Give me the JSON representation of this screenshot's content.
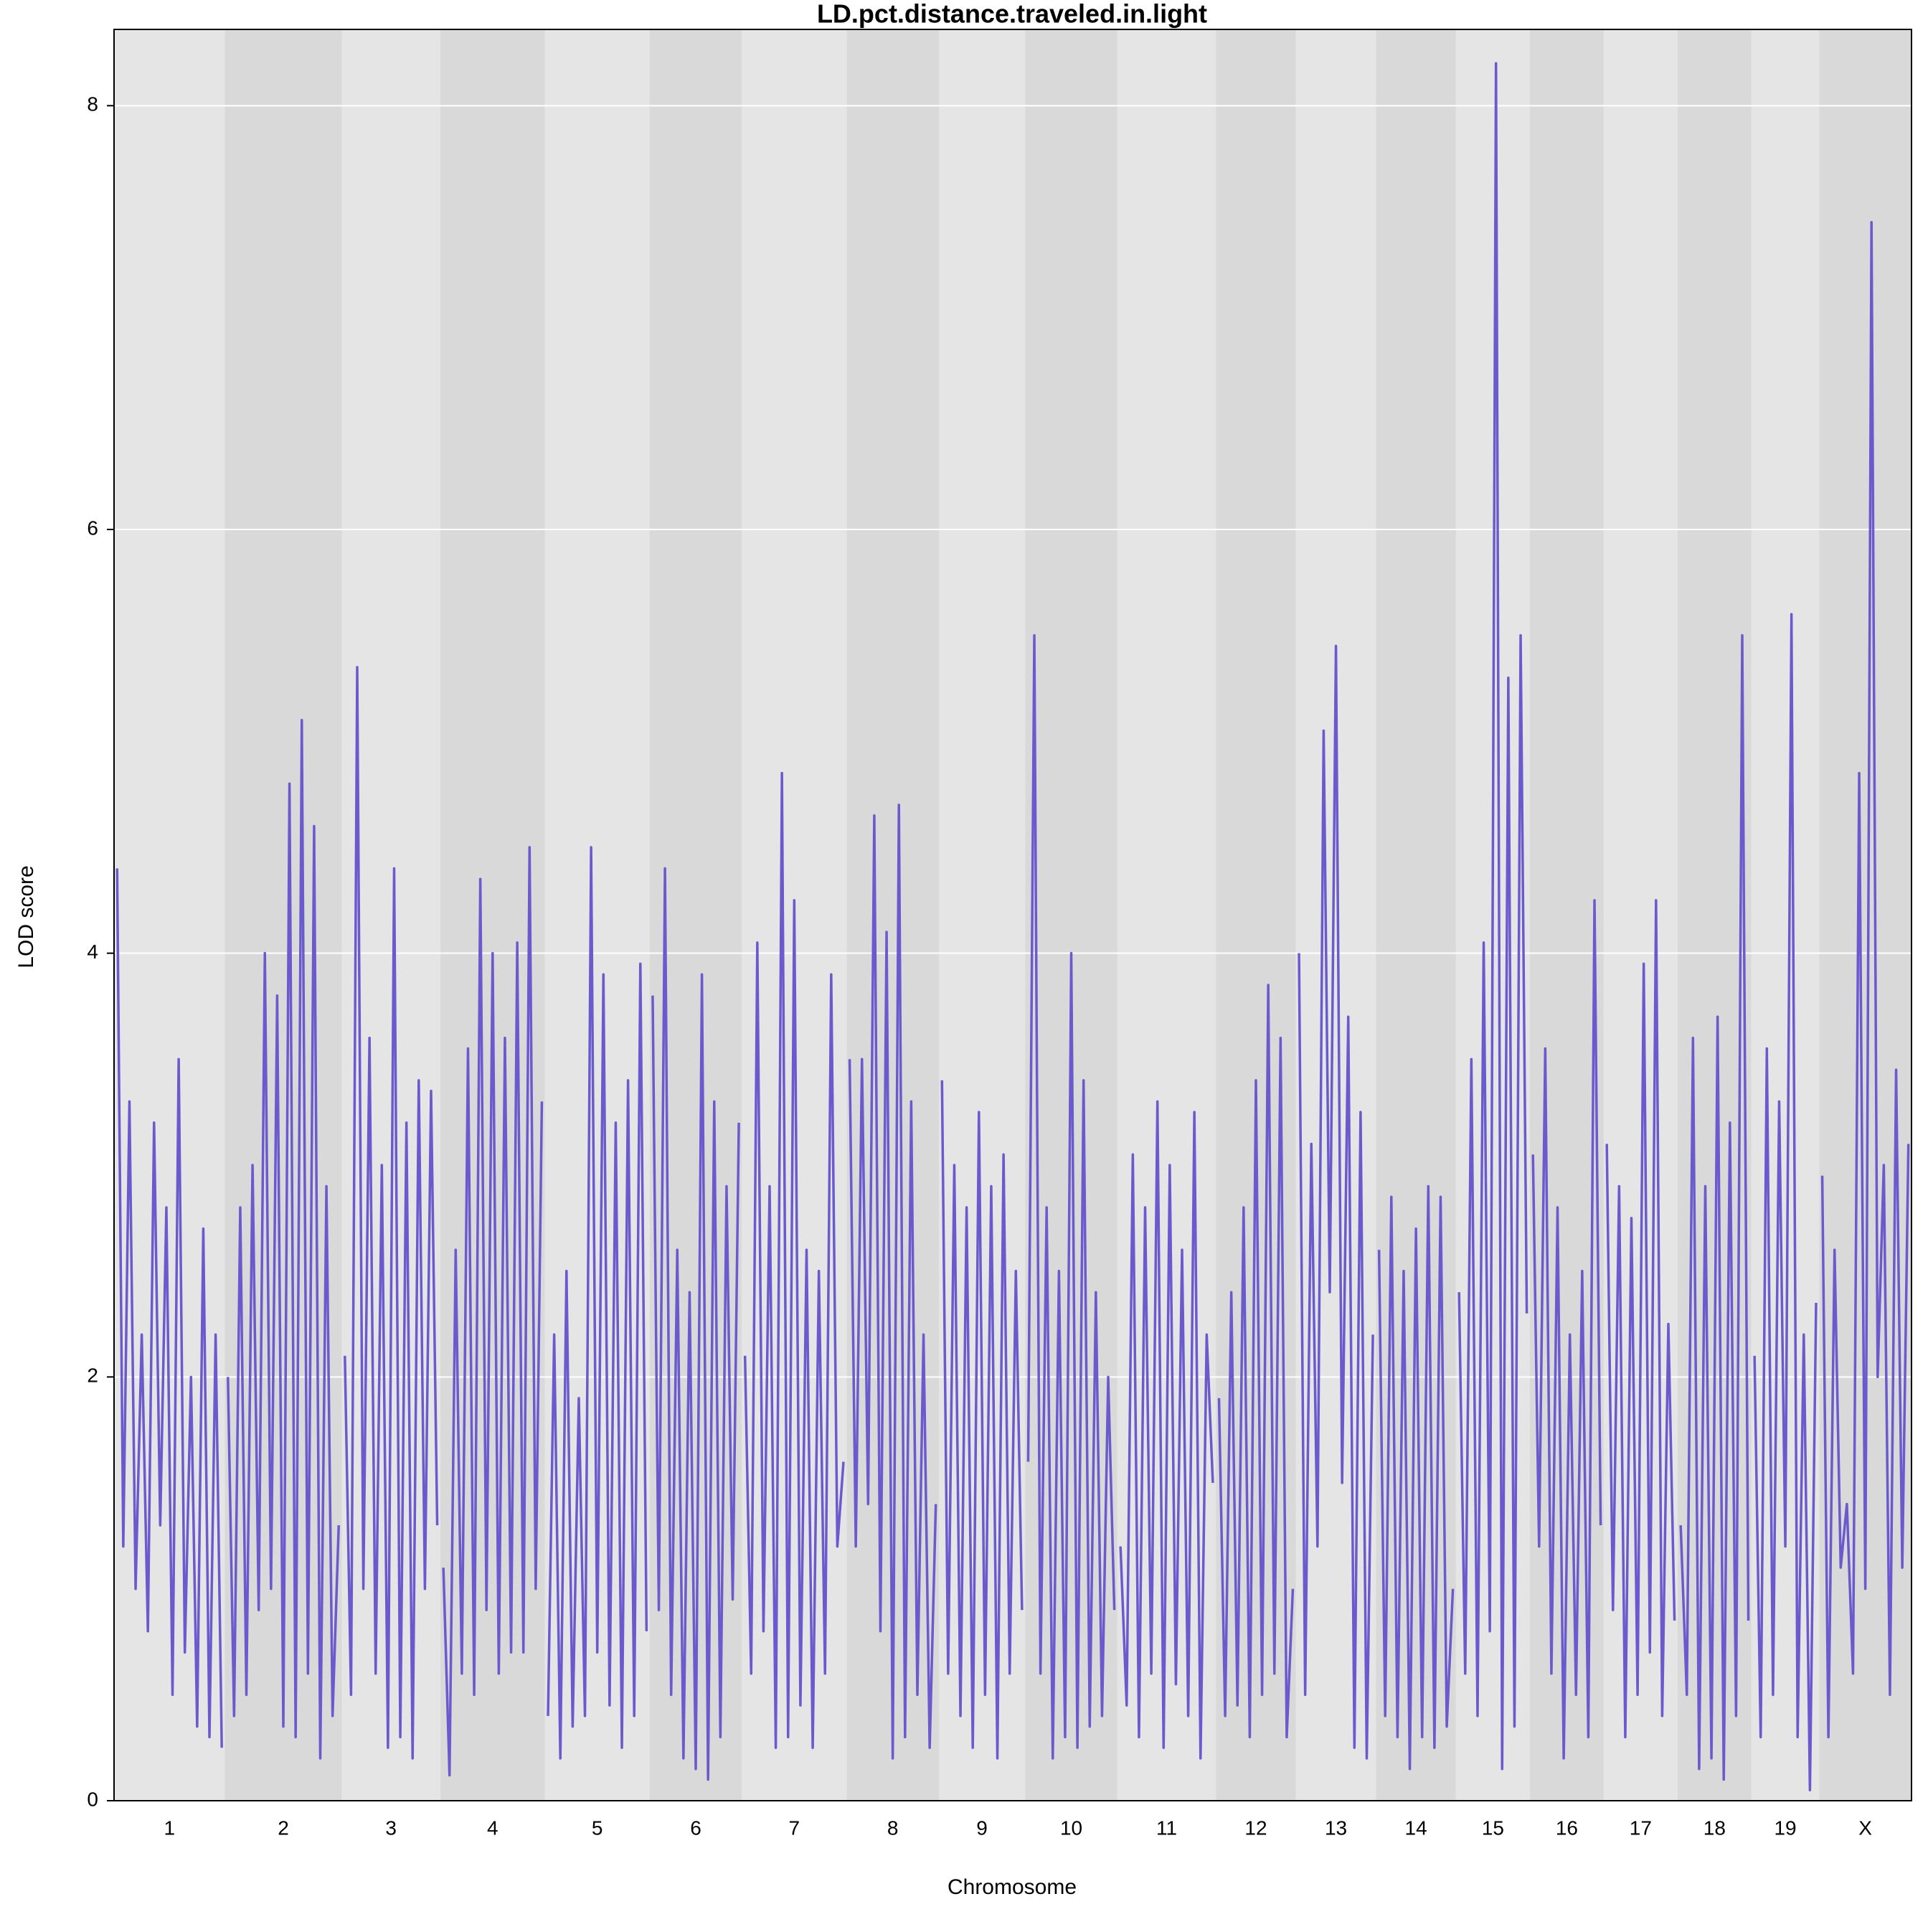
{
  "chart_data": {
    "type": "line",
    "title": "LD.pct.distance.traveled.in.light",
    "x_label": "Chromosome",
    "y_label": "LOD score",
    "categories": [
      "1",
      "2",
      "3",
      "4",
      "5",
      "6",
      "7",
      "8",
      "9",
      "10",
      "11",
      "12",
      "13",
      "14",
      "15",
      "16",
      "17",
      "18",
      "19",
      "X"
    ],
    "series": [
      {
        "color": "#6a5acd",
        "values": [
          [
            4.4,
            1.2,
            3.3,
            1.0,
            2.2,
            0.8,
            3.2,
            1.3,
            2.8,
            0.5,
            3.5,
            0.7,
            2.0,
            0.35,
            2.7,
            0.3,
            2.2,
            0.25
          ],
          [
            2.0,
            0.4,
            2.8,
            0.5,
            3.0,
            0.9,
            4.0,
            1.0,
            3.8,
            0.35,
            4.8,
            0.3,
            5.1,
            0.6,
            4.6,
            0.2,
            2.9,
            0.4,
            1.3
          ],
          [
            2.1,
            0.5,
            5.35,
            1.0,
            3.6,
            0.6,
            3.0,
            0.25,
            4.4,
            0.3,
            3.2,
            0.2,
            3.4,
            1.0,
            3.35,
            1.3
          ],
          [
            1.1,
            0.12,
            2.6,
            0.6,
            3.55,
            0.5,
            4.35,
            0.9,
            4.0,
            0.6,
            3.6,
            0.7,
            4.05,
            0.7,
            4.5,
            1.0,
            3.3
          ],
          [
            0.4,
            2.2,
            0.2,
            2.5,
            0.35,
            1.9,
            0.4,
            4.5,
            0.7,
            3.9,
            0.45,
            3.2,
            0.25,
            3.4,
            0.4,
            3.95,
            0.8
          ],
          [
            3.8,
            0.9,
            4.4,
            0.5,
            2.6,
            0.2,
            2.4,
            0.15,
            3.9,
            0.1,
            3.3,
            0.3,
            2.9,
            0.95,
            3.2
          ],
          [
            2.1,
            0.6,
            4.05,
            0.8,
            2.9,
            0.25,
            4.85,
            0.3,
            4.25,
            0.45,
            2.6,
            0.25,
            2.5,
            0.6,
            3.9,
            1.2,
            1.6
          ],
          [
            3.5,
            1.2,
            3.5,
            1.4,
            4.65,
            0.8,
            4.1,
            0.2,
            4.7,
            0.3,
            3.3,
            0.5,
            2.2,
            0.25,
            1.4
          ],
          [
            3.4,
            0.6,
            3.0,
            0.4,
            2.8,
            0.25,
            3.25,
            0.5,
            2.9,
            0.2,
            3.05,
            0.6,
            2.5,
            0.9
          ],
          [
            1.6,
            5.5,
            0.6,
            2.8,
            0.2,
            2.5,
            0.3,
            4.0,
            0.25,
            3.4,
            0.35,
            2.4,
            0.4,
            2.0,
            0.9
          ],
          [
            1.2,
            0.45,
            3.05,
            0.3,
            2.8,
            0.6,
            3.3,
            0.25,
            3.0,
            0.55,
            2.6,
            0.4,
            3.25,
            0.2,
            2.2,
            1.5
          ],
          [
            1.9,
            0.4,
            2.4,
            0.45,
            2.8,
            0.3,
            3.4,
            0.5,
            3.85,
            0.6,
            3.6,
            0.3,
            1.0
          ],
          [
            4.0,
            0.5,
            3.1,
            1.2,
            5.05,
            2.4,
            5.45,
            1.5,
            3.7,
            0.25,
            3.25,
            0.2,
            2.2
          ],
          [
            2.6,
            0.4,
            2.85,
            0.3,
            2.5,
            0.15,
            2.7,
            0.3,
            2.9,
            0.25,
            2.85,
            0.35,
            1.0
          ],
          [
            2.4,
            0.6,
            3.5,
            0.4,
            4.05,
            0.8,
            8.2,
            0.15,
            5.3,
            0.35,
            5.5,
            2.3
          ],
          [
            3.05,
            1.2,
            3.55,
            0.6,
            2.8,
            0.2,
            2.2,
            0.5,
            2.5,
            0.3,
            4.25,
            1.3
          ],
          [
            3.1,
            0.9,
            2.9,
            0.3,
            2.75,
            0.5,
            3.95,
            0.7,
            4.25,
            0.4,
            2.25,
            0.85
          ],
          [
            1.3,
            0.5,
            3.6,
            0.15,
            2.9,
            0.2,
            3.7,
            0.1,
            3.2,
            0.4,
            5.5,
            0.85
          ],
          [
            2.1,
            0.3,
            3.55,
            0.5,
            3.3,
            1.2,
            5.6,
            0.3,
            2.2,
            0.05,
            2.35
          ],
          [
            2.95,
            0.3,
            2.6,
            1.1,
            1.4,
            0.6,
            4.85,
            1.0,
            7.45,
            2.0,
            3.0,
            0.5,
            3.45,
            1.1,
            3.1
          ]
        ]
      }
    ],
    "ylim": [
      0,
      8.36
    ],
    "yticks": [
      0,
      2,
      4,
      6,
      8
    ],
    "grid": true,
    "band_colors": [
      "#e5e5e5",
      "#d9d9d9"
    ]
  }
}
